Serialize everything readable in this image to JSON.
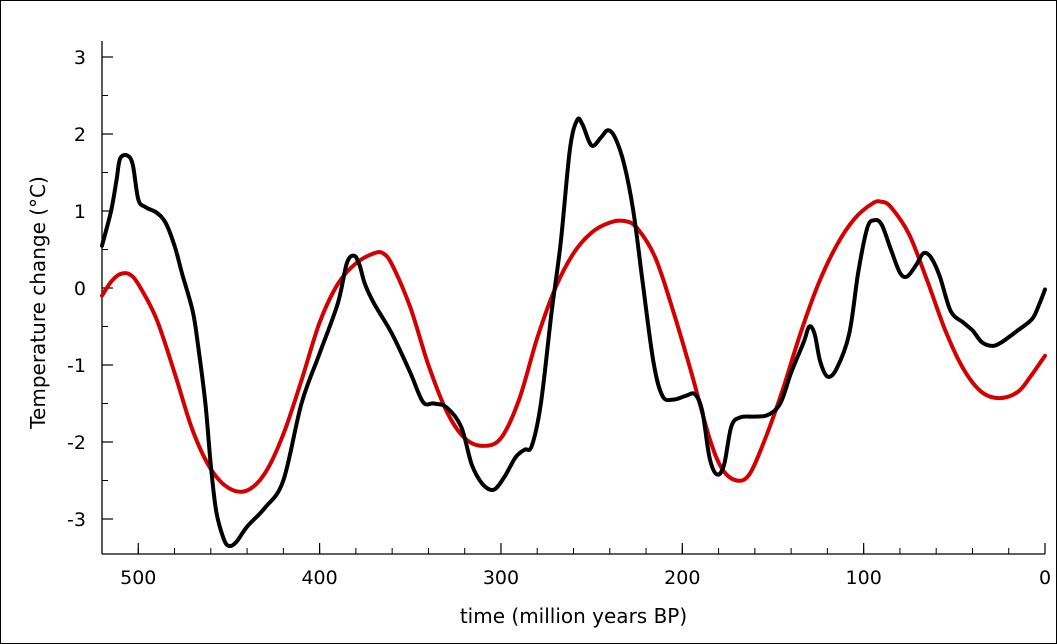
{
  "chart_data": {
    "type": "line",
    "title": "",
    "xlabel": "time (million years BP)",
    "ylabel": "Temperature change (°C)",
    "x_reversed": true,
    "xlim": [
      520,
      0
    ],
    "ylim": [
      -3.4,
      3.2
    ],
    "x_ticks": [
      500,
      400,
      300,
      200,
      100,
      0
    ],
    "x_minor_step": 20,
    "y_ticks": [
      3,
      2,
      1,
      0,
      -1,
      -2,
      -3
    ],
    "y_minor_step": 0.5,
    "grid": false,
    "legend": "none",
    "series": [
      {
        "color": "#000000",
        "points": [
          [
            520,
            0.55
          ],
          [
            515,
            1.0
          ],
          [
            512,
            1.4
          ],
          [
            510,
            1.68
          ],
          [
            506,
            1.72
          ],
          [
            503,
            1.6
          ],
          [
            500,
            1.15
          ],
          [
            496,
            1.05
          ],
          [
            490,
            0.98
          ],
          [
            485,
            0.85
          ],
          [
            480,
            0.55
          ],
          [
            476,
            0.2
          ],
          [
            470,
            -0.3
          ],
          [
            467,
            -0.75
          ],
          [
            463,
            -1.5
          ],
          [
            460,
            -2.3
          ],
          [
            457,
            -2.9
          ],
          [
            453,
            -3.25
          ],
          [
            450,
            -3.35
          ],
          [
            446,
            -3.3
          ],
          [
            440,
            -3.1
          ],
          [
            430,
            -2.85
          ],
          [
            420,
            -2.5
          ],
          [
            410,
            -1.5
          ],
          [
            400,
            -0.85
          ],
          [
            390,
            -0.2
          ],
          [
            385,
            0.32
          ],
          [
            381,
            0.42
          ],
          [
            378,
            0.3
          ],
          [
            375,
            0.05
          ],
          [
            370,
            -0.2
          ],
          [
            360,
            -0.6
          ],
          [
            350,
            -1.1
          ],
          [
            343,
            -1.48
          ],
          [
            337,
            -1.5
          ],
          [
            330,
            -1.55
          ],
          [
            322,
            -1.8
          ],
          [
            316,
            -2.3
          ],
          [
            310,
            -2.55
          ],
          [
            304,
            -2.62
          ],
          [
            298,
            -2.45
          ],
          [
            292,
            -2.2
          ],
          [
            287,
            -2.1
          ],
          [
            283,
            -2.05
          ],
          [
            278,
            -1.5
          ],
          [
            272,
            -0.3
          ],
          [
            267,
            0.6
          ],
          [
            262,
            1.8
          ],
          [
            258,
            2.18
          ],
          [
            255,
            2.12
          ],
          [
            250,
            1.85
          ],
          [
            245,
            1.95
          ],
          [
            241,
            2.05
          ],
          [
            237,
            1.95
          ],
          [
            232,
            1.6
          ],
          [
            227,
            1.0
          ],
          [
            222,
            0.1
          ],
          [
            216,
            -0.95
          ],
          [
            211,
            -1.4
          ],
          [
            205,
            -1.45
          ],
          [
            198,
            -1.4
          ],
          [
            193,
            -1.38
          ],
          [
            189,
            -1.6
          ],
          [
            185,
            -2.2
          ],
          [
            181,
            -2.42
          ],
          [
            177,
            -2.3
          ],
          [
            173,
            -1.8
          ],
          [
            168,
            -1.68
          ],
          [
            160,
            -1.67
          ],
          [
            153,
            -1.65
          ],
          [
            146,
            -1.5
          ],
          [
            140,
            -1.1
          ],
          [
            133,
            -0.7
          ],
          [
            130,
            -0.5
          ],
          [
            127,
            -0.6
          ],
          [
            124,
            -0.95
          ],
          [
            120,
            -1.15
          ],
          [
            115,
            -1.05
          ],
          [
            108,
            -0.6
          ],
          [
            103,
            0.2
          ],
          [
            98,
            0.78
          ],
          [
            94,
            0.88
          ],
          [
            90,
            0.82
          ],
          [
            85,
            0.5
          ],
          [
            80,
            0.2
          ],
          [
            76,
            0.15
          ],
          [
            71,
            0.3
          ],
          [
            67,
            0.45
          ],
          [
            63,
            0.4
          ],
          [
            58,
            0.15
          ],
          [
            52,
            -0.3
          ],
          [
            45,
            -0.45
          ],
          [
            40,
            -0.55
          ],
          [
            35,
            -0.7
          ],
          [
            30,
            -0.75
          ],
          [
            25,
            -0.72
          ],
          [
            15,
            -0.55
          ],
          [
            7,
            -0.4
          ],
          [
            3,
            -0.2
          ],
          [
            0,
            -0.02
          ]
        ]
      },
      {
        "color": "#d40000",
        "points": [
          [
            520,
            -0.1
          ],
          [
            515,
            0.08
          ],
          [
            510,
            0.18
          ],
          [
            505,
            0.18
          ],
          [
            500,
            0.05
          ],
          [
            490,
            -0.4
          ],
          [
            480,
            -1.1
          ],
          [
            470,
            -1.85
          ],
          [
            460,
            -2.35
          ],
          [
            450,
            -2.6
          ],
          [
            440,
            -2.63
          ],
          [
            430,
            -2.4
          ],
          [
            420,
            -1.9
          ],
          [
            410,
            -1.2
          ],
          [
            400,
            -0.45
          ],
          [
            390,
            0.05
          ],
          [
            380,
            0.32
          ],
          [
            370,
            0.45
          ],
          [
            365,
            0.45
          ],
          [
            360,
            0.3
          ],
          [
            350,
            -0.25
          ],
          [
            340,
            -1.0
          ],
          [
            330,
            -1.6
          ],
          [
            320,
            -1.95
          ],
          [
            310,
            -2.05
          ],
          [
            300,
            -1.95
          ],
          [
            290,
            -1.45
          ],
          [
            280,
            -0.65
          ],
          [
            270,
            0.0
          ],
          [
            260,
            0.45
          ],
          [
            250,
            0.72
          ],
          [
            240,
            0.85
          ],
          [
            232,
            0.87
          ],
          [
            225,
            0.78
          ],
          [
            215,
            0.4
          ],
          [
            205,
            -0.3
          ],
          [
            195,
            -1.1
          ],
          [
            185,
            -1.95
          ],
          [
            178,
            -2.35
          ],
          [
            170,
            -2.5
          ],
          [
            163,
            -2.42
          ],
          [
            155,
            -2.0
          ],
          [
            145,
            -1.35
          ],
          [
            135,
            -0.6
          ],
          [
            125,
            0.05
          ],
          [
            115,
            0.55
          ],
          [
            105,
            0.9
          ],
          [
            95,
            1.1
          ],
          [
            90,
            1.12
          ],
          [
            85,
            1.05
          ],
          [
            75,
            0.7
          ],
          [
            65,
            0.1
          ],
          [
            55,
            -0.55
          ],
          [
            45,
            -1.05
          ],
          [
            35,
            -1.35
          ],
          [
            25,
            -1.43
          ],
          [
            15,
            -1.35
          ],
          [
            8,
            -1.15
          ],
          [
            0,
            -0.88
          ]
        ]
      }
    ]
  }
}
